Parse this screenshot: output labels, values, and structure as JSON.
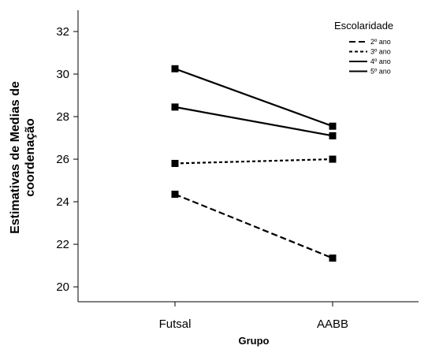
{
  "chart_data": {
    "type": "line",
    "xlabel": "Grupo",
    "ylabel_lines": [
      "Estimativas de Medias de",
      "coordenação"
    ],
    "categories": [
      "Futsal",
      "AABB"
    ],
    "ylim": [
      19.3,
      33
    ],
    "yticks": [
      20,
      22,
      24,
      26,
      28,
      30,
      32
    ],
    "legend_title": "Escolaridade",
    "legend_position": "top-right",
    "series": [
      {
        "name": "2º ano",
        "style": "dashed",
        "values": [
          24.35,
          21.35
        ]
      },
      {
        "name": "3º ano",
        "style": "dotted",
        "values": [
          25.8,
          26.0
        ]
      },
      {
        "name": "4º ano",
        "style": "solid",
        "values": [
          28.45,
          27.1
        ]
      },
      {
        "name": "5º ano",
        "style": "solid",
        "values": [
          30.25,
          27.55
        ]
      }
    ]
  }
}
